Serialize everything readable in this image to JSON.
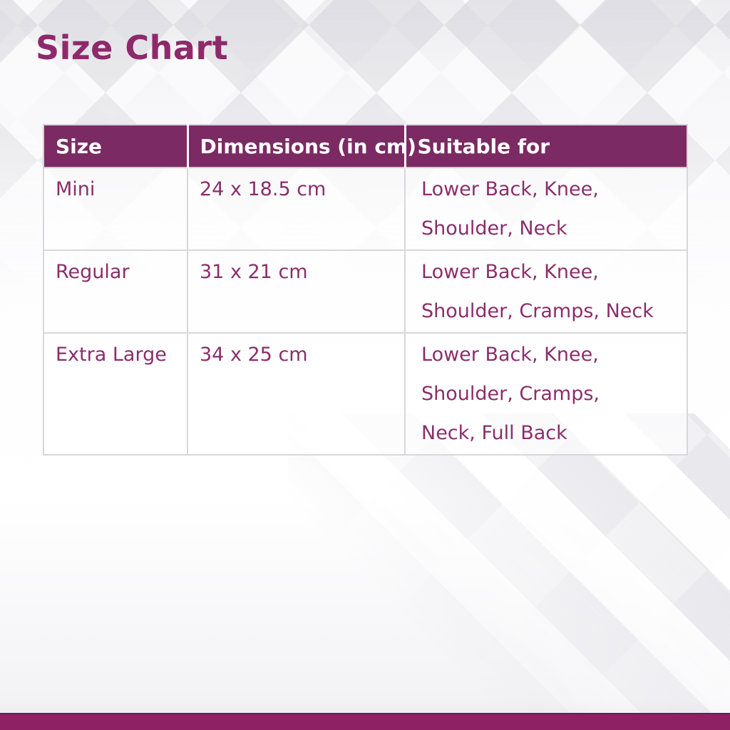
{
  "page": {
    "title": "Size Chart"
  },
  "chart_data": {
    "type": "table",
    "title": "Size Chart",
    "columns": [
      "Size",
      "Dimensions (in cm)",
      "Suitable for"
    ],
    "rows": [
      [
        "Mini",
        "24 x 18.5 cm",
        "Lower Back, Knee, Shoulder, Neck"
      ],
      [
        "Regular",
        "31 x 21 cm",
        "Lower Back, Knee, Shoulder, Cramps, Neck"
      ],
      [
        "Extra Large",
        "34 x 25 cm",
        "Lower Back, Knee, Shoulder, Cramps, Neck, Full Back"
      ]
    ]
  },
  "colors": {
    "title_text": "#8e2a6b",
    "table_header_bg": "#7b2a63",
    "table_header_text": "#ffffff",
    "cell_text": "#8b2e6b",
    "grid_line": "#d8d8db",
    "footer_bar": "#8e2164",
    "background": "#f2f2f5"
  }
}
